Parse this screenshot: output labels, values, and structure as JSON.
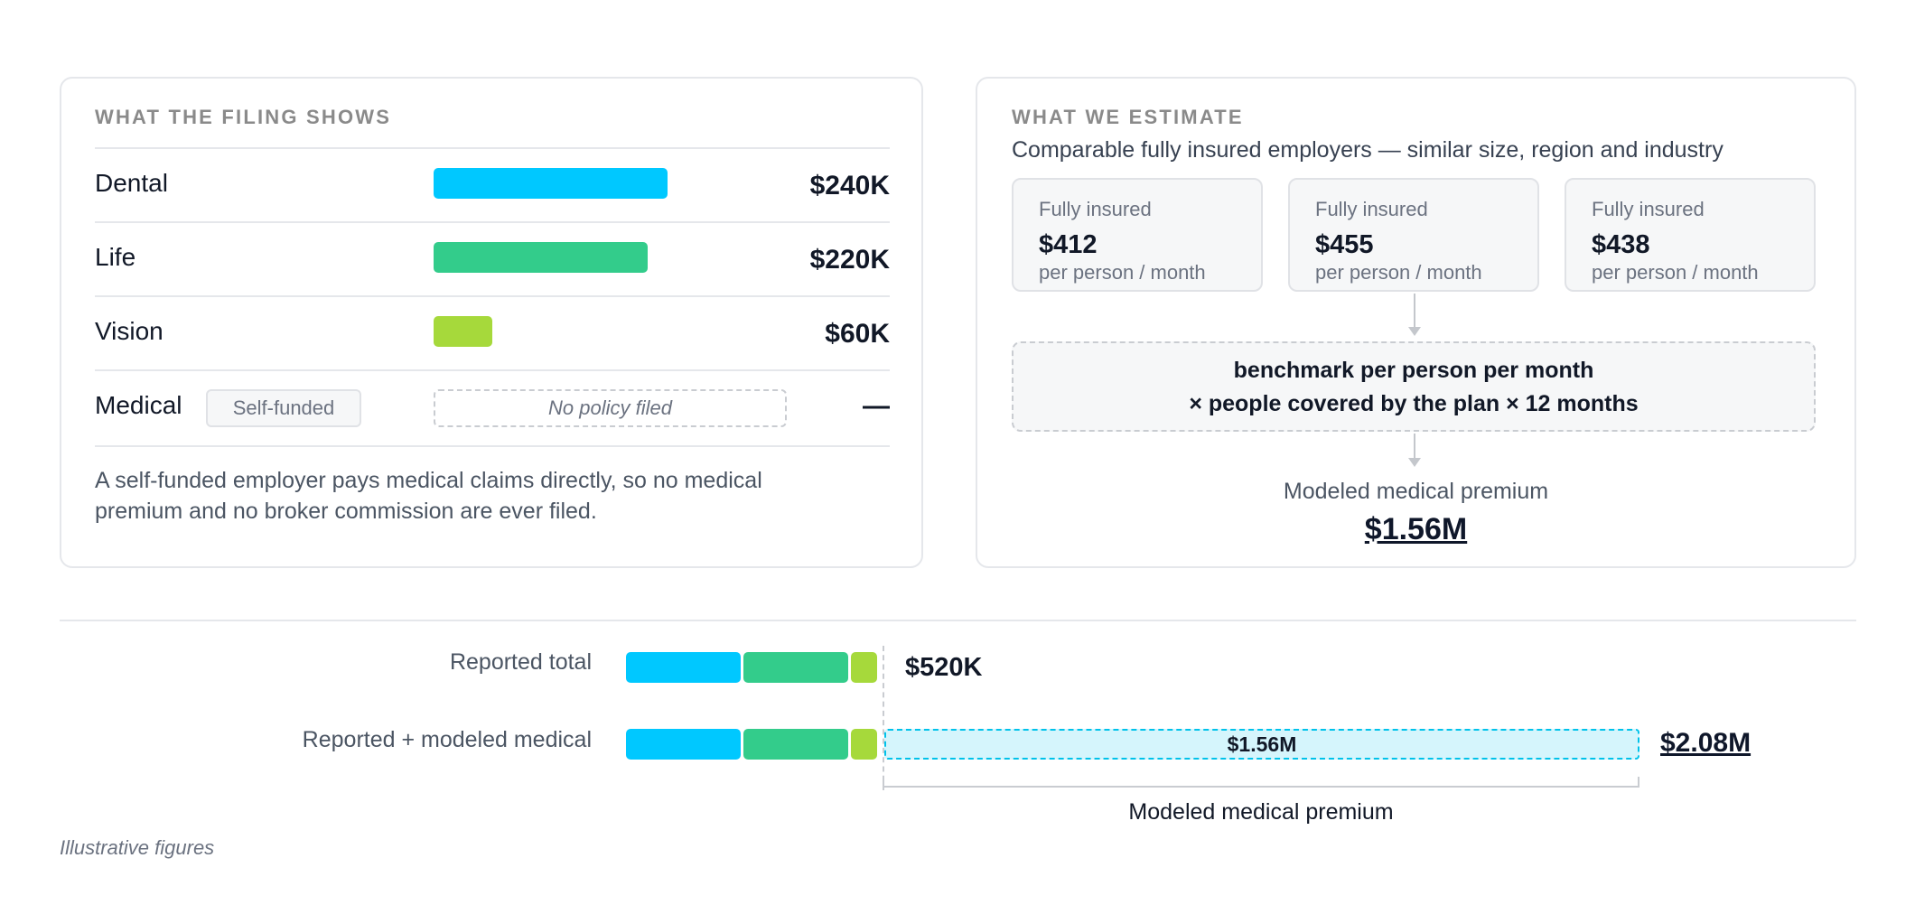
{
  "filing": {
    "eyebrow": "WHAT THE FILING SHOWS",
    "rows": [
      {
        "label": "Dental",
        "value": "$240K",
        "amount_k": 240,
        "color": "#00c8ff"
      },
      {
        "label": "Life",
        "value": "$220K",
        "amount_k": 220,
        "color": "#33cc8b"
      },
      {
        "label": "Vision",
        "value": "$60K",
        "amount_k": 60,
        "color": "#a6d93b"
      }
    ],
    "medical": {
      "label": "Medical",
      "badge": "Self-funded",
      "placeholder": "No policy filed",
      "value": "—"
    },
    "note": "A self-funded employer pays medical claims directly, so no medical premium and no broker commission are ever filed."
  },
  "estimate": {
    "eyebrow": "WHAT WE ESTIMATE",
    "subtitle": "Comparable fully insured employers — similar size, region and industry",
    "benchmarks": [
      {
        "kicker": "Fully insured",
        "amount": "$412",
        "unit": "per person / month"
      },
      {
        "kicker": "Fully insured",
        "amount": "$455",
        "unit": "per person / month"
      },
      {
        "kicker": "Fully insured",
        "amount": "$438",
        "unit": "per person / month"
      }
    ],
    "formula_line1": "benchmark per person per month",
    "formula_line2": "× people covered by the plan × 12 months",
    "modeled_label": "Modeled medical premium",
    "modeled_value": "$1.56M"
  },
  "comparison": {
    "reported_label": "Reported total",
    "reported_total": "$520K",
    "combined_label": "Reported + modeled medical",
    "modeled_segment": "$1.56M",
    "combined_total": "$2.08M",
    "bracket_label": "Modeled medical premium",
    "segments": [
      {
        "name": "Dental",
        "amount_k": 240,
        "color": "#00c8ff"
      },
      {
        "name": "Life",
        "amount_k": 220,
        "color": "#33cc8b"
      },
      {
        "name": "Vision",
        "amount_k": 60,
        "color": "#a6d93b"
      }
    ],
    "modeled_amount_k": 1560
  },
  "footnote": "Illustrative figures"
}
